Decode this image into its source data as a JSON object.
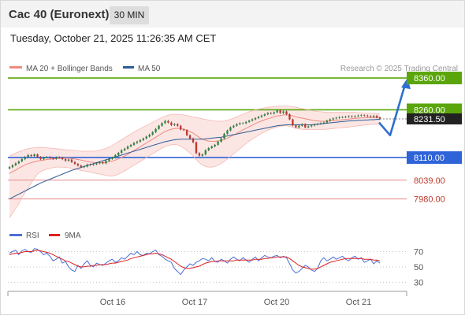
{
  "header": {
    "title": "Cac 40 (Euronext)",
    "timeframe": "30 MIN"
  },
  "datetime": "Tuesday, October 21, 2025 11:26:35 AM CET",
  "legend": {
    "ma20": "MA 20 + Bollinger Bands",
    "ma50": "MA 50",
    "ma20_color": "#f08a80",
    "ma50_color": "#2e5c96",
    "source": "Research © 2025 Trading Central"
  },
  "rsi_legend": {
    "rsi": "RSI",
    "ma9": "9MA",
    "rsi_color": "#4a6fd6",
    "ma9_color": "#e02020"
  },
  "chart_data": [
    {
      "type": "candlestick",
      "title": "Cac 40 (Euronext)",
      "timeframe": "30 MIN",
      "ylim": [
        7900,
        8370
      ],
      "x_ticks": [
        "Oct 16",
        "Oct 17",
        "Oct 20",
        "Oct 21"
      ],
      "current_price": "8231.50",
      "levels": [
        {
          "label": "8360.00",
          "value": 8360,
          "kind": "resistance",
          "color": "#5aa60a"
        },
        {
          "label": "8260.00",
          "value": 8260,
          "kind": "resistance",
          "color": "#5aa60a"
        },
        {
          "label": "8110.00",
          "value": 8110,
          "kind": "pivot",
          "color": "#2f63d8"
        },
        {
          "label": "8039.00",
          "value": 8039,
          "kind": "support",
          "color": "#e68a8a"
        },
        {
          "label": "7980.00",
          "value": 7980,
          "kind": "support",
          "color": "#e68a8a"
        }
      ],
      "forecast_path": [
        8220,
        8180,
        8340
      ],
      "close": [
        8080,
        8086,
        8092,
        8098,
        8105,
        8112,
        8118,
        8115,
        8120,
        8112,
        8105,
        8110,
        8112,
        8108,
        8106,
        8111,
        8109,
        8105,
        8100,
        8104,
        8096,
        8090,
        8085,
        8080,
        8082,
        8088,
        8087,
        8089,
        8092,
        8095,
        8092,
        8100,
        8106,
        8110,
        8118,
        8125,
        8133,
        8138,
        8145,
        8150,
        8156,
        8160,
        8165,
        8170,
        8176,
        8182,
        8190,
        8200,
        8210,
        8218,
        8225,
        8220,
        8212,
        8215,
        8210,
        8198,
        8196,
        8180,
        8170,
        8158,
        8124,
        8116,
        8120,
        8133,
        8140,
        8145,
        8150,
        8160,
        8170,
        8185,
        8195,
        8205,
        8210,
        8215,
        8218,
        8218,
        8222,
        8226,
        8230,
        8234,
        8238,
        8242,
        8246,
        8250,
        8248,
        8252,
        8258,
        8250,
        8255,
        8246,
        8230,
        8211,
        8205,
        8210,
        8215,
        8205,
        8208,
        8211,
        8214,
        8216,
        8218,
        8220,
        8226,
        8230,
        8233,
        8235,
        8237,
        8237,
        8238,
        8240,
        8238,
        8240,
        8242,
        8243,
        8242,
        8240,
        8238,
        8241,
        8236,
        8232
      ],
      "ma20": [
        8060,
        8066,
        8071,
        8077,
        8082,
        8087,
        8091,
        8094,
        8097,
        8099,
        8101,
        8102,
        8104,
        8105,
        8106,
        8107,
        8108,
        8108,
        8108,
        8108,
        8107,
        8106,
        8104,
        8102,
        8100,
        8098,
        8096,
        8095,
        8094,
        8094,
        8094,
        8095,
        8097,
        8099,
        8102,
        8106,
        8110,
        8115,
        8120,
        8126,
        8132,
        8138,
        8144,
        8150,
        8156,
        8162,
        8168,
        8174,
        8180,
        8186,
        8192,
        8196,
        8199,
        8201,
        8202,
        8201,
        8199,
        8196,
        8192,
        8187,
        8180,
        8173,
        8168,
        8164,
        8162,
        8161,
        8161,
        8162,
        8164,
        8167,
        8171,
        8176,
        8181,
        8186,
        8192,
        8197,
        8202,
        8207,
        8212,
        8217,
        8221,
        8225,
        8229,
        8232,
        8235,
        8238,
        8241,
        8242,
        8244,
        8244,
        8243,
        8241,
        8238,
        8236,
        8234,
        8232,
        8230,
        8228,
        8226,
        8225,
        8224,
        8224,
        8224,
        8225,
        8226,
        8227,
        8228,
        8229,
        8230,
        8231,
        8232,
        8233,
        8234,
        8235,
        8235,
        8236,
        8236,
        8236,
        8236,
        8236
      ],
      "bb_upper": [
        8115,
        8120,
        8124,
        8128,
        8132,
        8135,
        8138,
        8140,
        8141,
        8142,
        8142,
        8142,
        8141,
        8140,
        8139,
        8138,
        8137,
        8136,
        8135,
        8134,
        8133,
        8132,
        8131,
        8130,
        8130,
        8130,
        8130,
        8130,
        8131,
        8133,
        8136,
        8139,
        8143,
        8148,
        8154,
        8160,
        8166,
        8172,
        8178,
        8184,
        8190,
        8196,
        8201,
        8206,
        8211,
        8216,
        8221,
        8226,
        8231,
        8236,
        8240,
        8243,
        8245,
        8246,
        8246,
        8245,
        8244,
        8242,
        8240,
        8238,
        8236,
        8234,
        8232,
        8230,
        8228,
        8226,
        8225,
        8224,
        8224,
        8225,
        8227,
        8230,
        8234,
        8238,
        8242,
        8246,
        8250,
        8254,
        8257,
        8260,
        8262,
        8264,
        8266,
        8268,
        8269,
        8270,
        8271,
        8272,
        8272,
        8272,
        8271,
        8270,
        8268,
        8266,
        8264,
        8262,
        8260,
        8258,
        8256,
        8255,
        8254,
        8253,
        8252,
        8252,
        8252,
        8252,
        8252,
        8252,
        8252,
        8252,
        8252,
        8252,
        8251,
        8251,
        8250,
        8250,
        8249,
        8249,
        8248,
        8248
      ],
      "bb_lower": [
        7920,
        7935,
        7950,
        7965,
        7985,
        8000,
        8015,
        8030,
        8045,
        8058,
        8066,
        8070,
        8074,
        8076,
        8078,
        8080,
        8080,
        8080,
        8079,
        8078,
        8076,
        8074,
        8072,
        8070,
        8068,
        8066,
        8064,
        8062,
        8060,
        8058,
        8056,
        8054,
        8052,
        8052,
        8054,
        8058,
        8063,
        8068,
        8074,
        8080,
        8086,
        8092,
        8098,
        8104,
        8110,
        8116,
        8122,
        8128,
        8134,
        8140,
        8145,
        8148,
        8150,
        8151,
        8150,
        8146,
        8140,
        8132,
        8124,
        8115,
        8104,
        8094,
        8086,
        8082,
        8080,
        8080,
        8082,
        8086,
        8092,
        8098,
        8106,
        8114,
        8122,
        8130,
        8138,
        8146,
        8154,
        8162,
        8168,
        8174,
        8180,
        8186,
        8191,
        8196,
        8200,
        8203,
        8206,
        8208,
        8210,
        8210,
        8208,
        8205,
        8202,
        8200,
        8199,
        8198,
        8198,
        8198,
        8198,
        8198,
        8198,
        8198,
        8199,
        8200,
        8201,
        8202,
        8203,
        8204,
        8205,
        8206,
        8207,
        8208,
        8210,
        8211,
        8212,
        8213,
        8214,
        8215,
        8215,
        8215
      ],
      "ma50": [
        7980,
        7985,
        7990,
        7995,
        8000,
        8005,
        8010,
        8015,
        8020,
        8025,
        8030,
        8034,
        8038,
        8042,
        8046,
        8050,
        8054,
        8058,
        8062,
        8066,
        8070,
        8073,
        8076,
        8079,
        8082,
        8085,
        8088,
        8091,
        8094,
        8097,
        8100,
        8103,
        8106,
        8109,
        8112,
        8115,
        8118,
        8121,
        8124,
        8127,
        8130,
        8133,
        8136,
        8139,
        8142,
        8145,
        8148,
        8151,
        8154,
        8157,
        8160,
        8162,
        8164,
        8166,
        8167,
        8168,
        8168,
        8168,
        8168,
        8168,
        8168,
        8168,
        8168,
        8169,
        8170,
        8171,
        8172,
        8173,
        8174,
        8176,
        8178,
        8180,
        8182,
        8184,
        8186,
        8188,
        8190,
        8192,
        8194,
        8196,
        8198,
        8200,
        8202,
        8204,
        8206,
        8208,
        8210,
        8211,
        8212,
        8213,
        8213,
        8213,
        8213,
        8213,
        8213,
        8213,
        8213,
        8213,
        8214,
        8215,
        8216,
        8217,
        8218,
        8219,
        8220,
        8221,
        8222,
        8223,
        8224,
        8225,
        8226,
        8226,
        8227,
        8227,
        8228,
        8228,
        8229,
        8229,
        8230,
        8230
      ]
    },
    {
      "type": "line",
      "title": "RSI",
      "ylim": [
        20,
        85
      ],
      "y_ticks": [
        70,
        50,
        30
      ],
      "series": [
        {
          "name": "RSI",
          "color": "#4a6fd6",
          "values": [
            68,
            70,
            72,
            66,
            71,
            73,
            70,
            69,
            74,
            73,
            70,
            66,
            68,
            64,
            58,
            60,
            63,
            55,
            57,
            50,
            46,
            44,
            52,
            48,
            54,
            58,
            52,
            50,
            55,
            53,
            52,
            55,
            58,
            60,
            56,
            58,
            62,
            60,
            64,
            68,
            66,
            70,
            66,
            65,
            68,
            67,
            70,
            72,
            66,
            64,
            60,
            58,
            56,
            48,
            44,
            40,
            46,
            50,
            54,
            52,
            56,
            58,
            61,
            60,
            58,
            62,
            57,
            56,
            60,
            58,
            55,
            60,
            63,
            60,
            58,
            62,
            59,
            56,
            60,
            63,
            58,
            62,
            65,
            63,
            62,
            64,
            65,
            62,
            64,
            62,
            54,
            46,
            42,
            44,
            48,
            52,
            50,
            46,
            44,
            48,
            58,
            62,
            58,
            60,
            63,
            60,
            62,
            64,
            60,
            58,
            62,
            64,
            60,
            62,
            56,
            58,
            60,
            54,
            58,
            55
          ]
        },
        {
          "name": "9MA",
          "color": "#e02020",
          "values": [
            66,
            67,
            68,
            68,
            69,
            70,
            70,
            70,
            71,
            72,
            71,
            70,
            69,
            68,
            66,
            64,
            62,
            60,
            58,
            57,
            55,
            53,
            51,
            50,
            50,
            51,
            51,
            52,
            52,
            53,
            53,
            53,
            54,
            55,
            55,
            56,
            57,
            58,
            59,
            61,
            62,
            63,
            64,
            65,
            66,
            67,
            67,
            68,
            67,
            66,
            64,
            62,
            60,
            57,
            54,
            51,
            49,
            48,
            48,
            49,
            50,
            51,
            53,
            55,
            56,
            57,
            57,
            58,
            58,
            58,
            58,
            58,
            58,
            59,
            59,
            59,
            59,
            59,
            59,
            60,
            60,
            60,
            61,
            61,
            62,
            62,
            63,
            63,
            63,
            63,
            61,
            58,
            55,
            52,
            50,
            49,
            48,
            47,
            47,
            48,
            50,
            52,
            54,
            56,
            57,
            58,
            59,
            60,
            61,
            61,
            61,
            61,
            61,
            61,
            60,
            60,
            60,
            59,
            59,
            58
          ]
        }
      ]
    }
  ]
}
